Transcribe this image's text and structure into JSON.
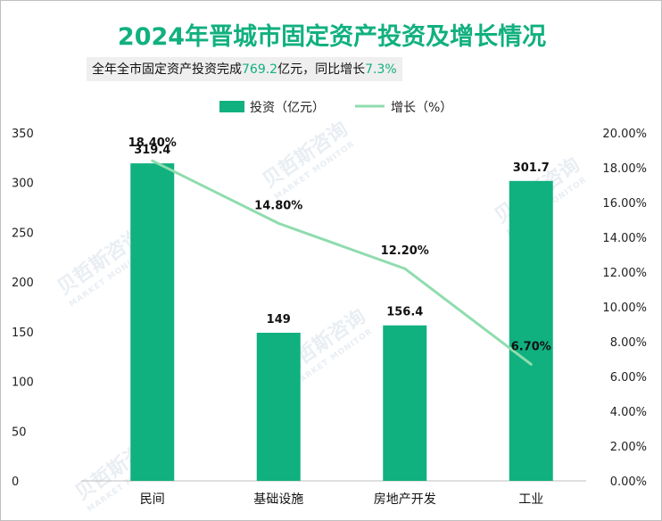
{
  "title": "2024年晋城市固定资产投资及增长情况",
  "subtitle": {
    "prefix": "全年全市固定资产投资完成",
    "amount": "769.2",
    "mid": "亿元，同比增长",
    "growth": "7.3%"
  },
  "watermark": {
    "cn": "贝哲斯咨询",
    "en": "MARKET MONITOR"
  },
  "colors": {
    "bar": "#11b07f",
    "line": "#8fdcae",
    "accent": "#11b07f"
  },
  "chart_data": {
    "type": "bar",
    "categories": [
      "民间",
      "基础设施",
      "房地产开发",
      "工业"
    ],
    "series": [
      {
        "name": "投资（亿元）",
        "type": "bar",
        "axis": "left",
        "values": [
          319.4,
          149,
          156.4,
          301.7
        ],
        "labels": [
          "319.4",
          "149",
          "156.4",
          "301.7"
        ]
      },
      {
        "name": "增长（%）",
        "type": "line",
        "axis": "right",
        "values": [
          18.4,
          14.8,
          12.2,
          6.7
        ],
        "labels": [
          "18.40%",
          "14.80%",
          "12.20%",
          "6.70%"
        ]
      }
    ],
    "ylim": [
      0,
      350
    ],
    "yticks": [
      "0",
      "50",
      "100",
      "150",
      "200",
      "250",
      "300",
      "350"
    ],
    "y2lim": [
      0,
      20
    ],
    "y2ticks": [
      "0.00%",
      "2.00%",
      "4.00%",
      "6.00%",
      "8.00%",
      "10.00%",
      "12.00%",
      "14.00%",
      "16.00%",
      "18.00%",
      "20.00%"
    ],
    "legend_position": "top-center",
    "grid": false
  }
}
